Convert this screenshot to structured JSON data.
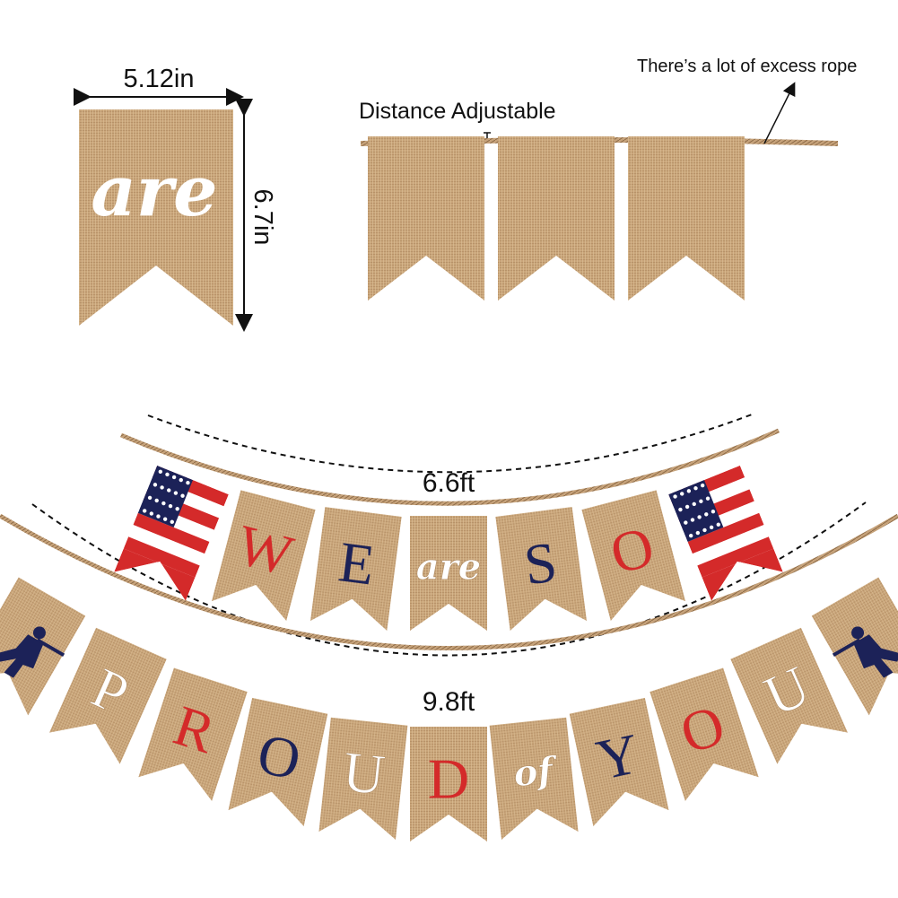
{
  "dimensions": {
    "width_label": "5.12in",
    "height_label": "6.7in",
    "distance_label": "Distance  Adjustable",
    "rope_note": "There’s a lot of excess rope",
    "length_upper": "6.6ft",
    "length_lower": "9.8ft"
  },
  "sample_flag": {
    "text": "are"
  },
  "banner_upper": [
    {
      "kind": "us-flag"
    },
    {
      "kind": "letter",
      "text": "W",
      "color": "red"
    },
    {
      "kind": "letter",
      "text": "E",
      "color": "navy"
    },
    {
      "kind": "script",
      "text": "are",
      "color": "white"
    },
    {
      "kind": "letter",
      "text": "S",
      "color": "navy"
    },
    {
      "kind": "letter",
      "text": "O",
      "color": "red"
    },
    {
      "kind": "us-flag"
    }
  ],
  "banner_lower": [
    {
      "kind": "soldier-left"
    },
    {
      "kind": "letter",
      "text": "P",
      "color": "white"
    },
    {
      "kind": "letter",
      "text": "R",
      "color": "red"
    },
    {
      "kind": "letter",
      "text": "O",
      "color": "navy"
    },
    {
      "kind": "letter",
      "text": "U",
      "color": "white"
    },
    {
      "kind": "letter",
      "text": "D",
      "color": "red"
    },
    {
      "kind": "script",
      "text": "of",
      "color": "white"
    },
    {
      "kind": "letter",
      "text": "Y",
      "color": "navy"
    },
    {
      "kind": "letter",
      "text": "O",
      "color": "red"
    },
    {
      "kind": "letter",
      "text": "U",
      "color": "white"
    },
    {
      "kind": "soldier-right"
    }
  ],
  "colors": {
    "burlap": "#c9a57a",
    "burlap_dark": "#a9845a",
    "red": "#d42a2a",
    "navy": "#1c2258",
    "white": "#ffffff",
    "rope": "#b88f63"
  }
}
